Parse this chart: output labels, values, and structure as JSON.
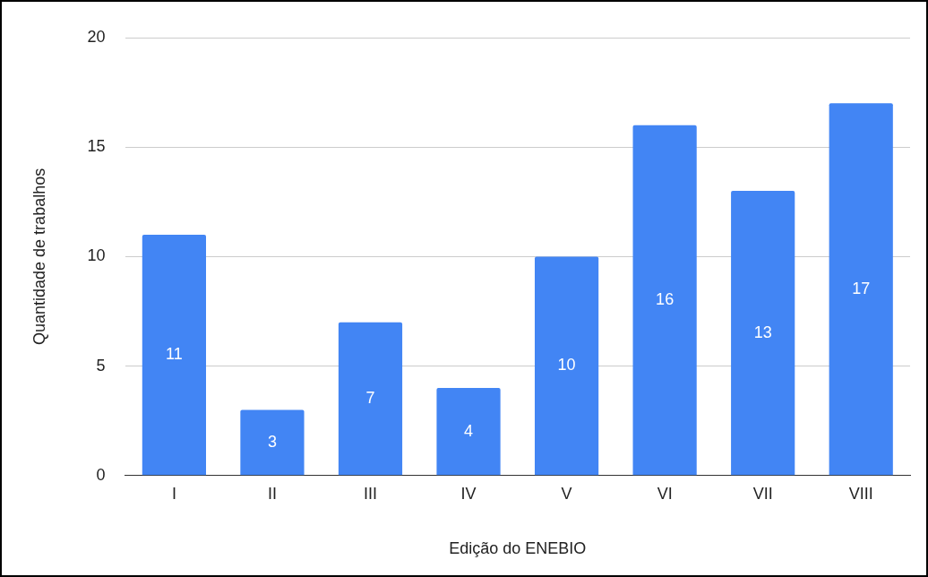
{
  "chart_data": {
    "type": "bar",
    "xlabel": "Edição do ENEBIO",
    "ylabel": "Quantidade de trabalhos",
    "categories": [
      "I",
      "II",
      "III",
      "IV",
      "V",
      "VI",
      "VII",
      "VIII"
    ],
    "values": [
      11,
      3,
      7,
      4,
      10,
      16,
      13,
      17
    ],
    "color": "#4285f4",
    "ylim": [
      0,
      20
    ],
    "yticks": [
      0,
      5,
      10,
      15,
      20
    ],
    "grid": "y",
    "data_labels": true,
    "legend": false
  }
}
